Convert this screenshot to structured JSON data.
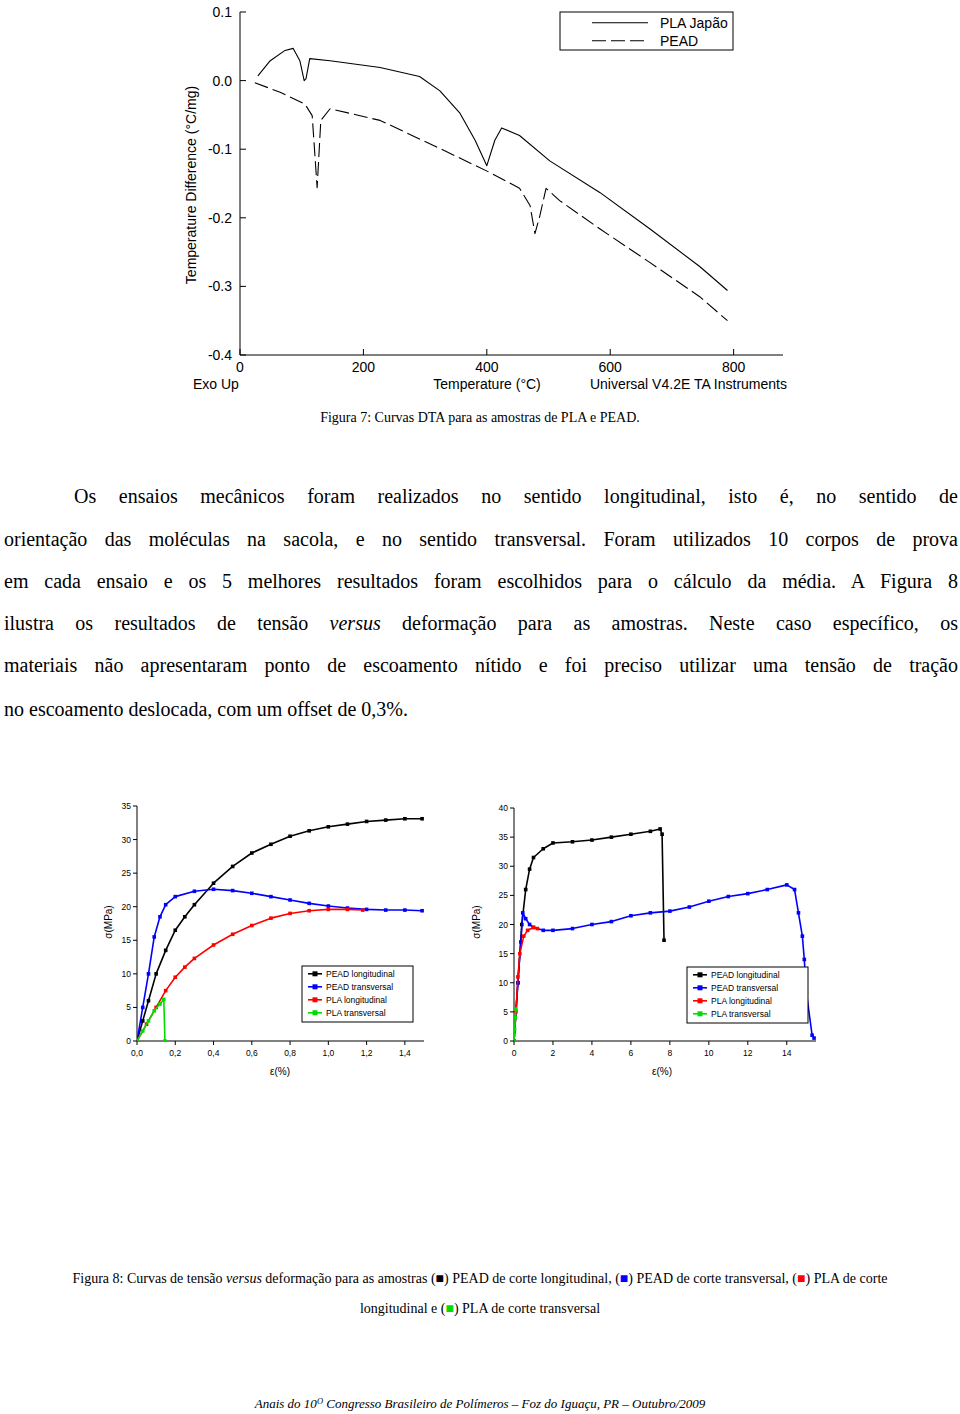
{
  "chart_data": [
    {
      "type": "line",
      "x_label": "Temperature (°C)",
      "y_label": "Temperature Difference (°C/mg)",
      "annotations": [
        "Exo Up",
        "Universal V4.2E TA Instruments"
      ],
      "xlim": [
        0,
        880
      ],
      "ylim": [
        -0.4,
        0.1
      ],
      "xticks": [
        0,
        200,
        400,
        600,
        800
      ],
      "yticks": [
        0.1,
        {
          "value": 0,
          "label": "0.0"
        },
        -0.1,
        -0.2,
        -0.3,
        -0.4
      ],
      "grid": false,
      "legend": "top-right",
      "series": [
        {
          "name": "PLA Japão",
          "color": "#000000",
          "line_style": "solid",
          "x": [
            29,
            49,
            73,
            86,
            97,
            104,
            107,
            113,
            146,
            227,
            291,
            324,
            356,
            381,
            400,
            413,
            424,
            453,
            502,
            583,
            664,
            745,
            790
          ],
          "values": [
            0.007,
            0.029,
            0.044,
            0.047,
            0.029,
            0.0,
            0.003,
            0.032,
            0.029,
            0.019,
            0.006,
            -0.015,
            -0.047,
            -0.087,
            -0.124,
            -0.087,
            -0.069,
            -0.08,
            -0.117,
            -0.163,
            -0.216,
            -0.271,
            -0.306
          ]
        },
        {
          "name": "PEAD",
          "color": "#000000",
          "line_style": "dashed",
          "x": [
            24,
            65,
            105,
            117,
            125,
            131,
            146,
            227,
            324,
            405,
            453,
            470,
            478,
            486,
            496,
            518,
            583,
            664,
            745,
            790
          ],
          "values": [
            -0.003,
            -0.017,
            -0.034,
            -0.051,
            -0.156,
            -0.058,
            -0.041,
            -0.058,
            -0.099,
            -0.134,
            -0.157,
            -0.182,
            -0.223,
            -0.197,
            -0.157,
            -0.175,
            -0.216,
            -0.265,
            -0.315,
            -0.35
          ]
        }
      ]
    },
    {
      "type": "line",
      "x_label": "ε(%)",
      "y_label": "σ(MPa)",
      "xlim": [
        0,
        1.5
      ],
      "ylim": [
        0,
        35
      ],
      "xticks": [
        {
          "value": 0,
          "label": "0,0"
        },
        {
          "value": 0.2,
          "label": "0,2"
        },
        {
          "value": 0.4,
          "label": "0,4"
        },
        {
          "value": 0.6,
          "label": "0,6"
        },
        {
          "value": 0.8,
          "label": "0,8"
        },
        {
          "value": 1.0,
          "label": "1,0"
        },
        {
          "value": 1.2,
          "label": "1,2"
        },
        {
          "value": 1.4,
          "label": "1,4"
        }
      ],
      "yticks": [
        0,
        5,
        10,
        15,
        20,
        25,
        30,
        35
      ],
      "grid": false,
      "legend": "bottom-right",
      "marker": "square",
      "series": [
        {
          "name": "PEAD longitudinal",
          "color": "#000000",
          "x": [
            0,
            0.03,
            0.06,
            0.1,
            0.15,
            0.2,
            0.25,
            0.3,
            0.4,
            0.5,
            0.6,
            0.7,
            0.8,
            0.9,
            1.0,
            1.1,
            1.2,
            1.3,
            1.4,
            1.49
          ],
          "values": [
            0,
            3,
            6,
            10,
            13.5,
            16.5,
            18.5,
            20.3,
            23.5,
            26,
            28,
            29.3,
            30.5,
            31.3,
            31.9,
            32.3,
            32.7,
            32.9,
            33.1,
            33.1
          ]
        },
        {
          "name": "PEAD transversal",
          "color": "#0000ff",
          "x": [
            0,
            0.03,
            0.06,
            0.09,
            0.12,
            0.15,
            0.2,
            0.3,
            0.4,
            0.5,
            0.6,
            0.7,
            0.8,
            0.9,
            1.0,
            1.1,
            1.2,
            1.3,
            1.4,
            1.49
          ],
          "values": [
            0,
            5,
            10,
            15.5,
            18.5,
            20.3,
            21.5,
            22.3,
            22.6,
            22.4,
            22,
            21.5,
            21,
            20.5,
            20.1,
            19.8,
            19.6,
            19.5,
            19.5,
            19.4
          ]
        },
        {
          "name": "PLA longitudinal",
          "color": "#ff0000",
          "x": [
            0,
            0.05,
            0.1,
            0.15,
            0.2,
            0.25,
            0.3,
            0.4,
            0.5,
            0.6,
            0.7,
            0.8,
            0.9,
            1.0,
            1.1,
            1.18
          ],
          "values": [
            0,
            2.5,
            5,
            7.5,
            9.5,
            11,
            12.3,
            14.3,
            15.9,
            17.2,
            18.3,
            19,
            19.4,
            19.6,
            19.6,
            19.5
          ]
        },
        {
          "name": "PLA transversal",
          "color": "#00dd00",
          "x": [
            0,
            0.03,
            0.06,
            0.09,
            0.12,
            0.14,
            0.146
          ],
          "values": [
            0,
            1.5,
            3,
            4.5,
            5.5,
            6.2,
            0
          ]
        }
      ]
    },
    {
      "type": "line",
      "x_label": "ε(%)",
      "y_label": "σ(MPa)",
      "xlim": [
        0,
        15.5
      ],
      "ylim": [
        0,
        40
      ],
      "xticks": [
        0,
        2,
        4,
        6,
        8,
        10,
        12,
        14
      ],
      "yticks": [
        0,
        5,
        10,
        15,
        20,
        25,
        30,
        35,
        40
      ],
      "grid": false,
      "legend": "bottom-right",
      "marker": "square",
      "series": [
        {
          "name": "PEAD longitudinal",
          "color": "#000000",
          "x": [
            0,
            0.2,
            0.4,
            0.6,
            0.8,
            1,
            1.5,
            2,
            3,
            4,
            5,
            6,
            7,
            7.5,
            7.6,
            7.7
          ],
          "values": [
            0,
            10,
            20,
            26,
            29.5,
            31.5,
            33,
            34,
            34.2,
            34.5,
            35,
            35.5,
            36,
            36.4,
            35.5,
            17.3
          ]
        },
        {
          "name": "PEAD transversal",
          "color": "#0000ff",
          "x": [
            0,
            0.2,
            0.35,
            0.45,
            0.6,
            0.8,
            1,
            1.5,
            2,
            3,
            4,
            5,
            6,
            7,
            8,
            9,
            10,
            11,
            12,
            13,
            14,
            14.4,
            14.6,
            14.8,
            14.9,
            15.0,
            15.3,
            15.4
          ],
          "values": [
            0,
            10,
            17,
            22,
            21,
            20,
            19.5,
            19,
            19,
            19.3,
            20,
            20.5,
            21.5,
            22,
            22.3,
            23,
            24,
            24.8,
            25.3,
            26,
            26.8,
            26,
            22,
            18,
            14,
            8.5,
            1,
            0.5
          ]
        },
        {
          "name": "PLA longitudinal",
          "color": "#ff0000",
          "x": [
            0,
            0.1,
            0.2,
            0.3,
            0.5,
            0.7,
            1.0,
            1.2
          ],
          "values": [
            0,
            5,
            11,
            15,
            18,
            19,
            19.5,
            19.3
          ]
        },
        {
          "name": "PLA transversal",
          "color": "#00dd00",
          "x": [
            0,
            0.03,
            0.06,
            0.1
          ],
          "values": [
            0,
            2,
            4,
            5.5
          ]
        }
      ]
    }
  ],
  "captions": {
    "figure_7": [
      {
        "text": "Figura 7: Curvas DTA para as amostras de PLA e PEAD."
      }
    ],
    "figure_8": [
      [
        {
          "text": "Figura 8: Curvas de tensão "
        },
        {
          "text": "versus",
          "italic": true
        },
        {
          "text": " deformação para as amostras ("
        },
        {
          "text": "■",
          "color": "#000000"
        },
        {
          "text": ") PEAD de corte longitudinal, ("
        },
        {
          "text": "■",
          "color": "#0000ff"
        },
        {
          "text": ") PEAD de corte transversal, ("
        },
        {
          "text": "■",
          "color": "#ff0000"
        },
        {
          "text": ") PLA de corte"
        }
      ],
      [
        {
          "text": "longitudinal e ("
        },
        {
          "text": "■",
          "color": "#00dd00"
        },
        {
          "text": ") PLA de corte transversal"
        }
      ]
    ]
  },
  "paragraph": [
    [
      {
        "text": "Os ensaios mecânicos foram realizados no sentido longitudinal, isto é, no sentido de"
      }
    ],
    [
      {
        "text": "orientação das moléculas na sacola, e no sentido transversal. Foram utilizados 10 corpos de prova"
      }
    ],
    [
      {
        "text": "em cada ensaio e os 5 melhores resultados foram escolhidos para o cálculo da média. A Figura 8"
      }
    ],
    [
      {
        "text": "ilustra os resultados de tensão "
      },
      {
        "text": "versus",
        "italic": true
      },
      {
        "text": " deformação para as amostras. Neste caso específico, os"
      }
    ],
    [
      {
        "text": "materiais não apresentaram ponto de escoamento nítido e foi preciso utilizar uma tensão de tração"
      }
    ],
    [
      {
        "text": "no escoamento deslocada, com um offset de 0,3%."
      }
    ]
  ],
  "footer": [
    {
      "text": "Anais do 10"
    },
    {
      "text": "O",
      "sup": true
    },
    {
      "text": " Congresso Brasileiro de Polímeros – Foz do Iguaçu, PR – Outubro/2009"
    }
  ]
}
